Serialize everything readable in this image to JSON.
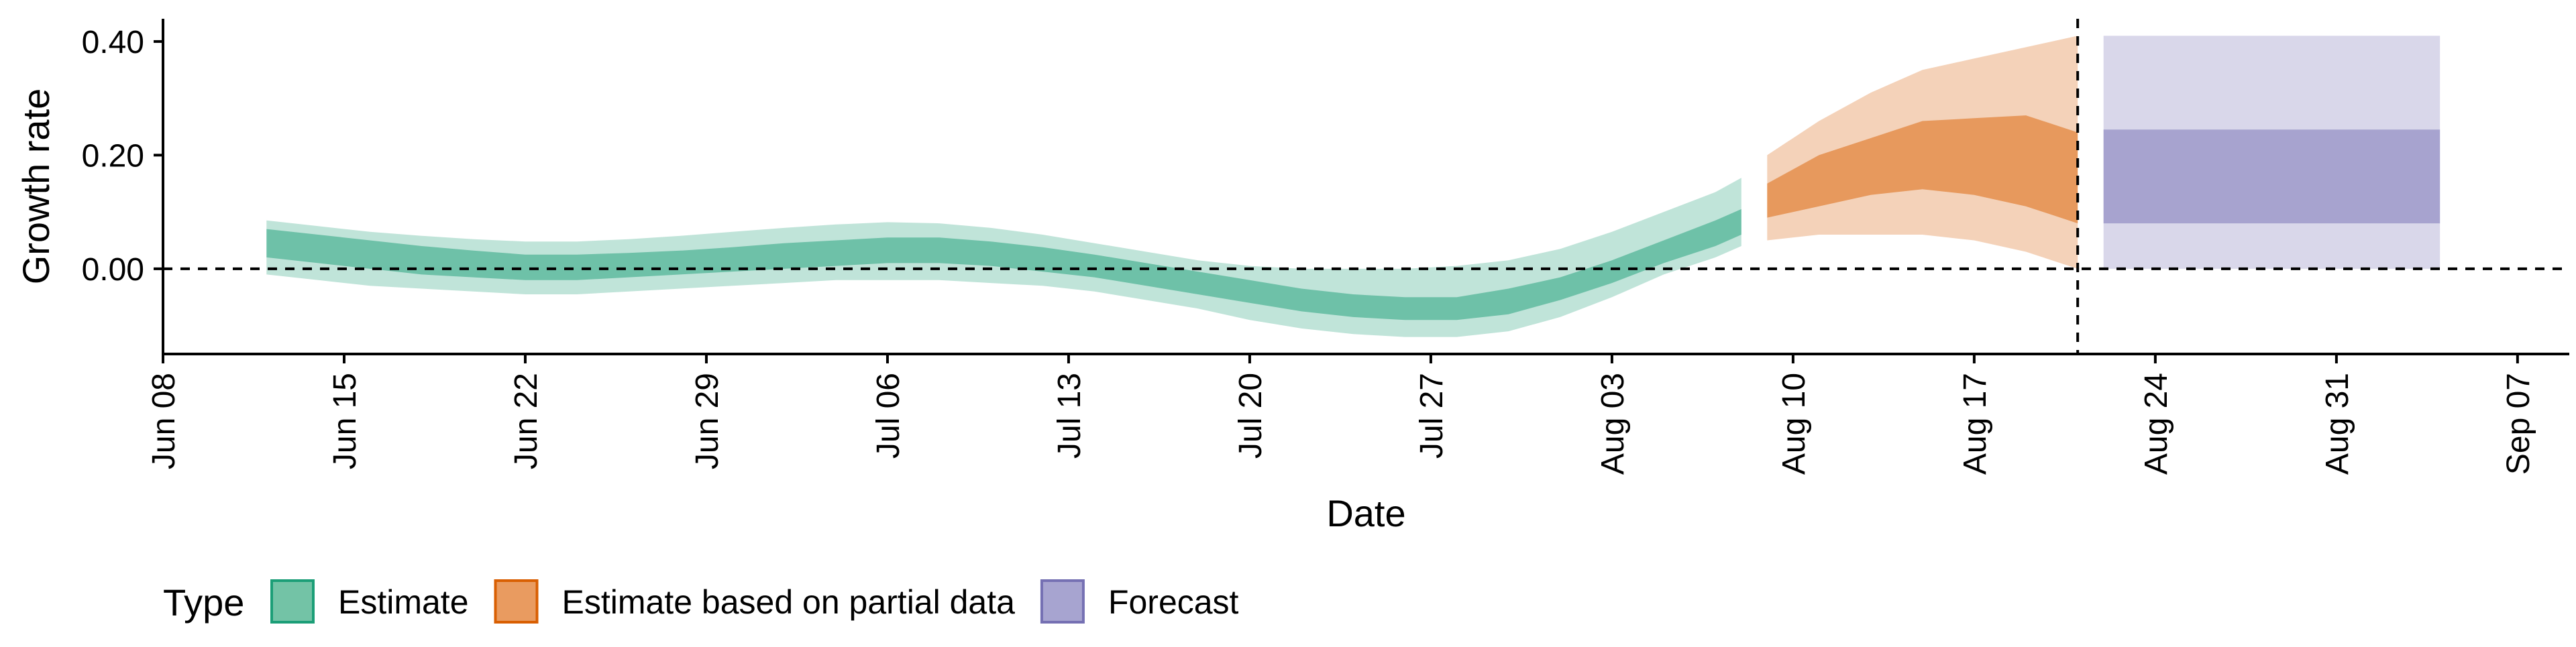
{
  "chart_data": {
    "type": "area",
    "xlabel": "Date",
    "ylabel": "Growth rate",
    "x_ticks": [
      "Jun 08",
      "Jun 15",
      "Jun 22",
      "Jun 29",
      "Jul 06",
      "Jul 13",
      "Jul 20",
      "Jul 27",
      "Aug 03",
      "Aug 10",
      "Aug 17",
      "Aug 24",
      "Aug 31",
      "Sep 07"
    ],
    "x_tick_dates": [
      "2020-06-08",
      "2020-06-15",
      "2020-06-22",
      "2020-06-29",
      "2020-07-06",
      "2020-07-13",
      "2020-07-20",
      "2020-07-27",
      "2020-08-03",
      "2020-08-10",
      "2020-08-17",
      "2020-08-24",
      "2020-08-31",
      "2020-09-07"
    ],
    "y_ticks": [
      "0.00",
      "0.20",
      "0.40"
    ],
    "y_tick_values": [
      0.0,
      0.2,
      0.4
    ],
    "xlim": [
      "2020-06-08",
      "2020-09-09"
    ],
    "ylim": [
      -0.15,
      0.44
    ],
    "reference_lines": {
      "horizontal_y": 0.0,
      "vertical_x": "2020-08-21",
      "style": "dashed"
    },
    "legend": {
      "title": "Type",
      "position": "bottom-left",
      "entries": [
        {
          "label": "Estimate",
          "fill": "#73C3A6",
          "border": "#1B9E77"
        },
        {
          "label": "Estimate based on partial data",
          "fill": "#E99B60",
          "border": "#D95F02"
        },
        {
          "label": "Forecast",
          "fill": "#A7A4D0",
          "border": "#7570B3"
        }
      ]
    },
    "series": [
      {
        "name": "Estimate",
        "color": "#1B9E77",
        "x": [
          "2020-06-12",
          "2020-06-14",
          "2020-06-16",
          "2020-06-18",
          "2020-06-20",
          "2020-06-22",
          "2020-06-24",
          "2020-06-26",
          "2020-06-28",
          "2020-06-30",
          "2020-07-02",
          "2020-07-04",
          "2020-07-06",
          "2020-07-08",
          "2020-07-10",
          "2020-07-12",
          "2020-07-14",
          "2020-07-16",
          "2020-07-18",
          "2020-07-20",
          "2020-07-22",
          "2020-07-24",
          "2020-07-26",
          "2020-07-28",
          "2020-07-30",
          "2020-08-01",
          "2020-08-03",
          "2020-08-05",
          "2020-08-07",
          "2020-08-08"
        ],
        "outer_lower": [
          -0.01,
          -0.02,
          -0.03,
          -0.035,
          -0.04,
          -0.045,
          -0.045,
          -0.04,
          -0.035,
          -0.03,
          -0.025,
          -0.02,
          -0.02,
          -0.02,
          -0.025,
          -0.03,
          -0.04,
          -0.055,
          -0.07,
          -0.09,
          -0.105,
          -0.115,
          -0.12,
          -0.12,
          -0.11,
          -0.085,
          -0.05,
          -0.01,
          0.02,
          0.04
        ],
        "inner_lower": [
          0.02,
          0.01,
          0.0,
          -0.01,
          -0.015,
          -0.02,
          -0.02,
          -0.015,
          -0.01,
          -0.005,
          0.0,
          0.005,
          0.01,
          0.01,
          0.005,
          -0.005,
          -0.015,
          -0.03,
          -0.045,
          -0.06,
          -0.075,
          -0.085,
          -0.09,
          -0.09,
          -0.08,
          -0.055,
          -0.025,
          0.01,
          0.04,
          0.06
        ],
        "median": [
          0.045,
          0.035,
          0.025,
          0.015,
          0.008,
          0.003,
          0.003,
          0.006,
          0.01,
          0.015,
          0.02,
          0.025,
          0.03,
          0.03,
          0.025,
          0.015,
          0.005,
          -0.01,
          -0.025,
          -0.04,
          -0.055,
          -0.065,
          -0.07,
          -0.07,
          -0.058,
          -0.035,
          -0.005,
          0.03,
          0.062,
          0.08
        ],
        "inner_upper": [
          0.07,
          0.06,
          0.05,
          0.04,
          0.032,
          0.025,
          0.025,
          0.028,
          0.032,
          0.038,
          0.045,
          0.05,
          0.055,
          0.055,
          0.048,
          0.038,
          0.025,
          0.01,
          -0.005,
          -0.02,
          -0.035,
          -0.045,
          -0.05,
          -0.05,
          -0.035,
          -0.015,
          0.015,
          0.05,
          0.085,
          0.105
        ],
        "outer_upper": [
          0.085,
          0.075,
          0.065,
          0.058,
          0.052,
          0.048,
          0.048,
          0.052,
          0.058,
          0.065,
          0.072,
          0.078,
          0.082,
          0.08,
          0.072,
          0.06,
          0.045,
          0.03,
          0.015,
          0.005,
          0.0,
          0.0,
          0.0,
          0.005,
          0.015,
          0.035,
          0.065,
          0.1,
          0.135,
          0.16
        ]
      },
      {
        "name": "Estimate based on partial data",
        "color": "#D95F02",
        "x": [
          "2020-08-09",
          "2020-08-11",
          "2020-08-13",
          "2020-08-15",
          "2020-08-17",
          "2020-08-19",
          "2020-08-21"
        ],
        "outer_lower": [
          0.05,
          0.06,
          0.06,
          0.06,
          0.05,
          0.03,
          0.0
        ],
        "inner_lower": [
          0.09,
          0.11,
          0.13,
          0.14,
          0.13,
          0.11,
          0.08
        ],
        "median": [
          0.12,
          0.15,
          0.17,
          0.19,
          0.19,
          0.18,
          0.16
        ],
        "inner_upper": [
          0.15,
          0.2,
          0.23,
          0.26,
          0.265,
          0.27,
          0.24
        ],
        "outer_upper": [
          0.2,
          0.26,
          0.31,
          0.35,
          0.37,
          0.39,
          0.41
        ]
      },
      {
        "name": "Forecast",
        "color": "#7570B3",
        "x": [
          "2020-08-22",
          "2020-09-04"
        ],
        "outer_lower": [
          0.0,
          0.0
        ],
        "inner_lower": [
          0.08,
          0.08
        ],
        "inner_upper": [
          0.245,
          0.245
        ],
        "outer_upper": [
          0.41,
          0.41
        ]
      }
    ]
  }
}
